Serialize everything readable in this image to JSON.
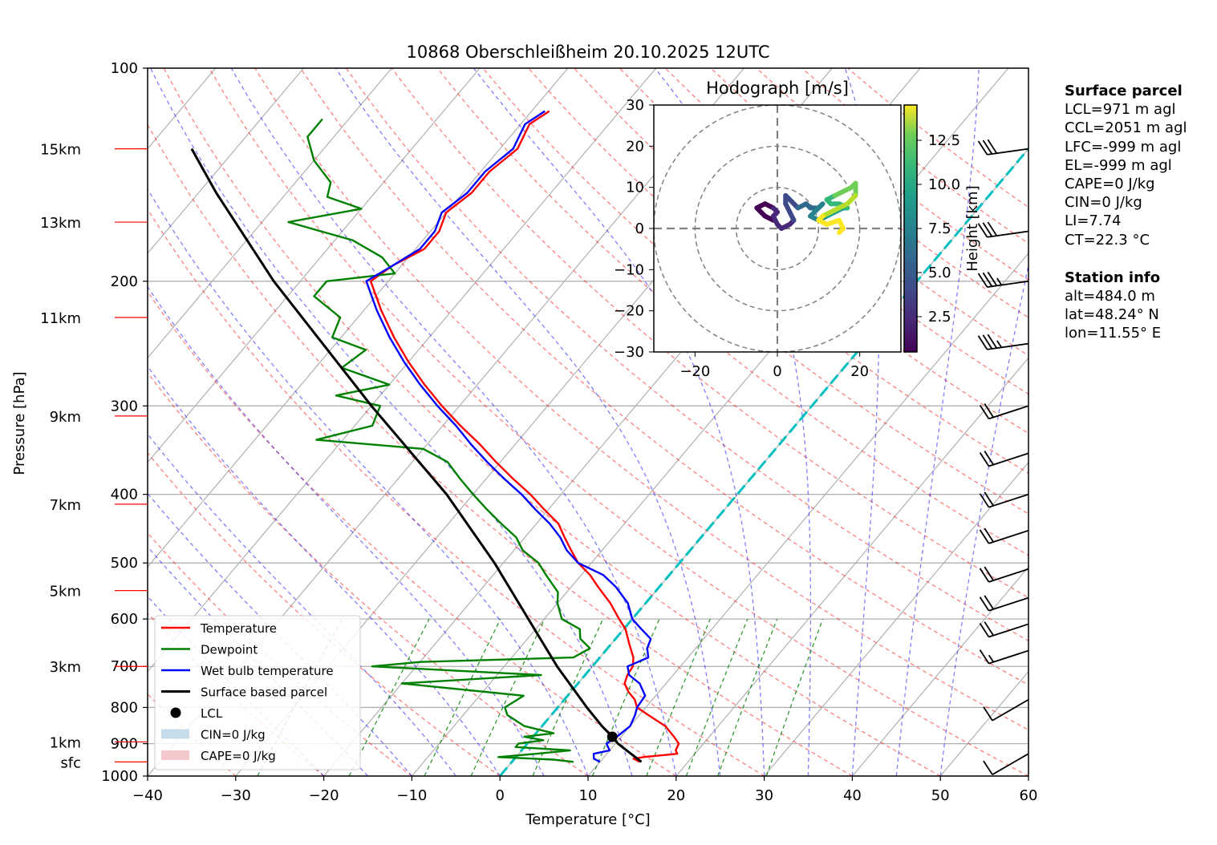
{
  "chart_data": {
    "type": "line",
    "subtype": "skew-T log-P diagram",
    "title": "10868 Oberschleißheim 20.10.2025 12UTC",
    "xlabel": "Temperature [°C]",
    "ylabel": "Pressure [hPa]",
    "xlim": [
      -40,
      60
    ],
    "ylim": [
      1000,
      100
    ],
    "x_ticks": [
      -40,
      -30,
      -20,
      -10,
      0,
      10,
      20,
      30,
      40,
      50,
      60
    ],
    "y_ticks": [
      100,
      200,
      300,
      400,
      500,
      600,
      700,
      800,
      900,
      1000
    ],
    "grid": true,
    "height_markers": [
      {
        "label": "15km",
        "p": 130
      },
      {
        "label": "13km",
        "p": 165
      },
      {
        "label": "11km",
        "p": 225
      },
      {
        "label": "9km",
        "p": 310
      },
      {
        "label": "7km",
        "p": 413
      },
      {
        "label": "5km",
        "p": 547
      },
      {
        "label": "3km",
        "p": 700
      },
      {
        "label": "1km",
        "p": 895
      },
      {
        "label": "sfc",
        "p": 955
      }
    ],
    "series": [
      {
        "name": "Temperature",
        "color": "#ff0000",
        "points": [
          [
            955,
            14.5
          ],
          [
            945,
            13.5
          ],
          [
            940,
            14.5
          ],
          [
            930,
            18
          ],
          [
            920,
            17.5
          ],
          [
            900,
            17.2
          ],
          [
            880,
            16
          ],
          [
            850,
            14
          ],
          [
            820,
            11
          ],
          [
            800,
            9
          ],
          [
            780,
            8
          ],
          [
            760,
            6.5
          ],
          [
            740,
            5.3
          ],
          [
            720,
            4.8
          ],
          [
            700,
            4.6
          ],
          [
            680,
            3.8
          ],
          [
            650,
            2
          ],
          [
            620,
            0.2
          ],
          [
            600,
            -1.5
          ],
          [
            570,
            -4
          ],
          [
            540,
            -7
          ],
          [
            520,
            -9
          ],
          [
            500,
            -11.5
          ],
          [
            480,
            -13.5
          ],
          [
            460,
            -15.5
          ],
          [
            440,
            -17.5
          ],
          [
            420,
            -20.5
          ],
          [
            400,
            -23.5
          ],
          [
            380,
            -27
          ],
          [
            360,
            -30.5
          ],
          [
            340,
            -34
          ],
          [
            320,
            -38
          ],
          [
            300,
            -42
          ],
          [
            280,
            -46
          ],
          [
            260,
            -50
          ],
          [
            240,
            -54
          ],
          [
            220,
            -58
          ],
          [
            200,
            -62
          ],
          [
            190,
            -61
          ],
          [
            180,
            -59
          ],
          [
            170,
            -59
          ],
          [
            160,
            -60
          ],
          [
            150,
            -59
          ],
          [
            140,
            -59
          ],
          [
            130,
            -58
          ],
          [
            120,
            -59
          ],
          [
            115,
            -58
          ]
        ]
      },
      {
        "name": "Dewpoint",
        "color": "#008000",
        "points": [
          [
            955,
            7
          ],
          [
            948,
            4.5
          ],
          [
            940,
            -2
          ],
          [
            930,
            2
          ],
          [
            920,
            5.5
          ],
          [
            910,
            -1
          ],
          [
            900,
            -1
          ],
          [
            890,
            1.5
          ],
          [
            880,
            -1
          ],
          [
            870,
            2
          ],
          [
            850,
            -2
          ],
          [
            820,
            -5
          ],
          [
            800,
            -6
          ],
          [
            770,
            -5
          ],
          [
            740,
            -20
          ],
          [
            720,
            -5
          ],
          [
            700,
            -25
          ],
          [
            690,
            -20
          ],
          [
            680,
            -3
          ],
          [
            660,
            -2
          ],
          [
            640,
            -4
          ],
          [
            620,
            -5
          ],
          [
            600,
            -8
          ],
          [
            570,
            -10
          ],
          [
            550,
            -11
          ],
          [
            520,
            -14
          ],
          [
            500,
            -16
          ],
          [
            480,
            -19
          ],
          [
            460,
            -21
          ],
          [
            440,
            -24
          ],
          [
            420,
            -27
          ],
          [
            400,
            -30
          ],
          [
            380,
            -33
          ],
          [
            360,
            -36
          ],
          [
            345,
            -40
          ],
          [
            335,
            -53
          ],
          [
            320,
            -48
          ],
          [
            300,
            -49
          ],
          [
            290,
            -55
          ],
          [
            280,
            -50
          ],
          [
            265,
            -57
          ],
          [
            250,
            -56
          ],
          [
            240,
            -61
          ],
          [
            225,
            -62
          ],
          [
            210,
            -67
          ],
          [
            200,
            -67
          ],
          [
            195,
            -60
          ],
          [
            185,
            -63
          ],
          [
            175,
            -68
          ],
          [
            165,
            -77
          ],
          [
            158,
            -70
          ],
          [
            152,
            -75
          ],
          [
            145,
            -76
          ],
          [
            135,
            -80
          ],
          [
            125,
            -83
          ],
          [
            118,
            -83
          ]
        ]
      },
      {
        "name": "Wet bulb temperature",
        "color": "#0000ff",
        "points": [
          [
            955,
            10
          ],
          [
            945,
            9
          ],
          [
            930,
            8.5
          ],
          [
            920,
            10
          ],
          [
            900,
            9
          ],
          [
            880,
            9.5
          ],
          [
            850,
            10
          ],
          [
            820,
            9.5
          ],
          [
            800,
            9
          ],
          [
            770,
            8.8
          ],
          [
            740,
            7
          ],
          [
            720,
            5
          ],
          [
            700,
            4
          ],
          [
            680,
            5.5
          ],
          [
            660,
            4.5
          ],
          [
            640,
            4
          ],
          [
            620,
            2
          ],
          [
            600,
            0
          ],
          [
            570,
            -2
          ],
          [
            540,
            -5
          ],
          [
            520,
            -7.5
          ],
          [
            500,
            -11.5
          ],
          [
            480,
            -14
          ],
          [
            460,
            -16
          ],
          [
            440,
            -18.5
          ],
          [
            420,
            -21.5
          ],
          [
            400,
            -24.5
          ],
          [
            380,
            -28
          ],
          [
            360,
            -31.5
          ],
          [
            340,
            -35
          ],
          [
            320,
            -38.5
          ],
          [
            300,
            -42.5
          ],
          [
            280,
            -46.5
          ],
          [
            260,
            -50.5
          ],
          [
            240,
            -54.5
          ],
          [
            220,
            -58.5
          ],
          [
            200,
            -62.5
          ],
          [
            190,
            -61
          ],
          [
            180,
            -59.5
          ],
          [
            170,
            -59.5
          ],
          [
            160,
            -60.5
          ],
          [
            150,
            -59.5
          ],
          [
            140,
            -59.5
          ],
          [
            130,
            -58.5
          ],
          [
            120,
            -59.5
          ],
          [
            115,
            -58.5
          ]
        ]
      },
      {
        "name": "Surface based parcel",
        "color": "#000000",
        "points": [
          [
            955,
            14.7
          ],
          [
            900,
            10.3
          ],
          [
            880,
            9.0
          ],
          [
            850,
            6.8
          ],
          [
            800,
            3.3
          ],
          [
            700,
            -4
          ],
          [
            600,
            -11.8
          ],
          [
            500,
            -21
          ],
          [
            400,
            -33
          ],
          [
            300,
            -50
          ],
          [
            200,
            -73
          ],
          [
            150,
            -88
          ],
          [
            130,
            -95
          ]
        ]
      }
    ],
    "markers": [
      {
        "name": "LCL",
        "p": 880,
        "t": 9.0,
        "color": "#000000"
      }
    ],
    "zero_isotherm": {
      "t": 0,
      "color": "#00bfbf",
      "style": "dashed"
    },
    "legend": {
      "position": "lower-left",
      "entries": [
        {
          "label": "Temperature",
          "kind": "line",
          "color": "#ff0000"
        },
        {
          "label": "Dewpoint",
          "kind": "line",
          "color": "#008000"
        },
        {
          "label": "Wet bulb temperature",
          "kind": "line",
          "color": "#0000ff"
        },
        {
          "label": "Surface based parcel",
          "kind": "line",
          "color": "#000000"
        },
        {
          "label": "LCL",
          "kind": "marker",
          "color": "#000000"
        },
        {
          "label": "CIN=0 J/kg",
          "kind": "patch",
          "color": "#c6dcea"
        },
        {
          "label": "CAPE=0 J/kg",
          "kind": "patch",
          "color": "#f5c8cc"
        }
      ]
    },
    "wind_barbs": [
      {
        "p": 130,
        "barbs": "3 full"
      },
      {
        "p": 170,
        "barbs": "3 full"
      },
      {
        "p": 200,
        "barbs": "3 full + half"
      },
      {
        "p": 245,
        "barbs": "3 full + half"
      },
      {
        "p": 300,
        "barbs": "2 full"
      },
      {
        "p": 350,
        "barbs": "2 full"
      },
      {
        "p": 400,
        "barbs": "2 full"
      },
      {
        "p": 450,
        "barbs": "2 full"
      },
      {
        "p": 510,
        "barbs": "2 full"
      },
      {
        "p": 560,
        "barbs": "2 full"
      },
      {
        "p": 610,
        "barbs": "2 full"
      },
      {
        "p": 665,
        "barbs": "1 full + half"
      },
      {
        "p": 780,
        "barbs": "1 full"
      },
      {
        "p": 930,
        "barbs": "1 full"
      }
    ],
    "hodograph": {
      "title": "Hodograph [m/s]",
      "xlim": [
        -30,
        30
      ],
      "ylim": [
        -30,
        30
      ],
      "x_ticks": [
        -20,
        0,
        20
      ],
      "y_ticks": [
        -30,
        -20,
        -10,
        0,
        10,
        20,
        30
      ],
      "rings": [
        10,
        20,
        30
      ],
      "colorbar": {
        "label": "Height [km]",
        "ticks": [
          2.5,
          5.0,
          7.5,
          10.0,
          12.5
        ],
        "range": [
          0.5,
          14.5
        ],
        "colormap": "viridis"
      },
      "points": [
        [
          -1,
          2,
          0.5
        ],
        [
          -3,
          3,
          0.8
        ],
        [
          -4,
          4,
          1.0
        ],
        [
          -5,
          5,
          1.2
        ],
        [
          -3,
          6,
          1.5
        ],
        [
          -1,
          5,
          1.8
        ],
        [
          0,
          4,
          2.0
        ],
        [
          -1,
          3,
          2.2
        ],
        [
          0,
          1,
          2.5
        ],
        [
          1,
          0,
          2.8
        ],
        [
          3,
          1,
          3.0
        ],
        [
          4,
          2,
          3.3
        ],
        [
          3,
          4,
          3.6
        ],
        [
          2,
          6,
          3.9
        ],
        [
          2,
          8,
          4.2
        ],
        [
          5,
          5,
          4.5
        ],
        [
          7,
          6,
          4.8
        ],
        [
          8,
          5,
          5.2
        ],
        [
          10,
          5,
          5.6
        ],
        [
          11,
          6,
          6.0
        ],
        [
          9,
          4,
          6.4
        ],
        [
          8,
          3,
          6.8
        ],
        [
          10,
          2,
          7.2
        ],
        [
          12,
          3,
          7.5
        ],
        [
          14,
          4,
          7.9
        ],
        [
          16,
          5,
          8.3
        ],
        [
          17,
          5,
          8.7
        ],
        [
          15,
          6,
          9.1
        ],
        [
          13,
          6,
          9.5
        ],
        [
          12,
          7,
          9.9
        ],
        [
          14,
          8,
          10.3
        ],
        [
          16,
          9,
          10.6
        ],
        [
          18,
          10,
          11.0
        ],
        [
          19,
          11,
          11.4
        ],
        [
          19,
          8,
          11.7
        ],
        [
          17,
          6,
          12.0
        ],
        [
          15,
          5,
          12.3
        ],
        [
          13,
          4,
          12.6
        ],
        [
          11,
          3,
          12.9
        ],
        [
          10,
          2,
          13.2
        ],
        [
          12,
          1,
          13.5
        ],
        [
          15,
          2,
          13.8
        ],
        [
          16,
          0,
          14.1
        ],
        [
          15,
          -1,
          14.4
        ]
      ]
    }
  },
  "info_panel": {
    "surface": {
      "title": "Surface parcel",
      "lines": [
        "LCL=971 m agl",
        "CCL=2051 m agl",
        "LFC=-999 m agl",
        "EL=-999 m agl",
        "CAPE=0 J/kg",
        "CIN=0 J/kg",
        "LI=7.74",
        "CT=22.3 °C"
      ]
    },
    "station": {
      "title": "Station info",
      "lines": [
        "alt=484.0 m",
        "lat=48.24° N",
        "lon=11.55° E"
      ]
    }
  }
}
